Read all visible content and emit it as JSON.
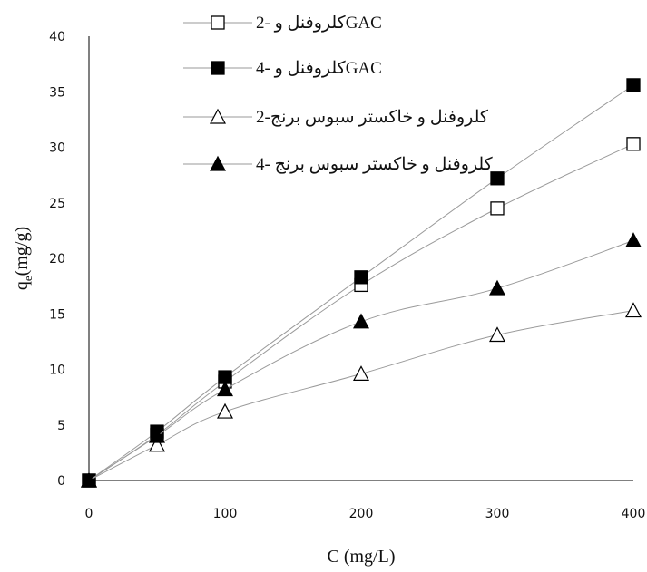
{
  "chart_data": {
    "type": "line",
    "xlabel": "C (mg/L)",
    "ylabel_main": "q",
    "ylabel_sub": "e",
    "ylabel_rest": "(mg/g)",
    "xlim": [
      0,
      400
    ],
    "ylim": [
      0,
      40
    ],
    "xticks": [
      0,
      100,
      200,
      300,
      400
    ],
    "yticks": [
      0,
      5,
      10,
      15,
      20,
      25,
      30,
      35,
      40
    ],
    "grid": false,
    "legend_position": "top-right",
    "series": [
      {
        "name": "کلروفنل و -2GAC",
        "marker": "square-open",
        "x": [
          0,
          50,
          100,
          200,
          300,
          400
        ],
        "y": [
          0,
          4.1,
          8.9,
          17.6,
          24.5,
          30.3
        ]
      },
      {
        "name": "کلروفنل و -4GAC",
        "marker": "square-filled",
        "x": [
          0,
          50,
          100,
          200,
          300,
          400
        ],
        "y": [
          0,
          4.4,
          9.3,
          18.3,
          27.2,
          35.6
        ]
      },
      {
        "name": "کلروفنل و خاکستر سبوس برنج-2",
        "marker": "triangle-open",
        "x": [
          0,
          50,
          100,
          200,
          300,
          400
        ],
        "y": [
          0,
          3.2,
          6.2,
          9.6,
          13.1,
          15.3
        ]
      },
      {
        "name": "کلروفنل و خاکستر سبوس برنج -4",
        "marker": "triangle-filled",
        "x": [
          0,
          50,
          100,
          200,
          300,
          400
        ],
        "y": [
          0,
          4.0,
          8.2,
          14.3,
          17.3,
          21.6
        ]
      }
    ],
    "colors": {
      "line": "#9a9a9a",
      "marker": "#000000",
      "axis": "#000000"
    }
  }
}
